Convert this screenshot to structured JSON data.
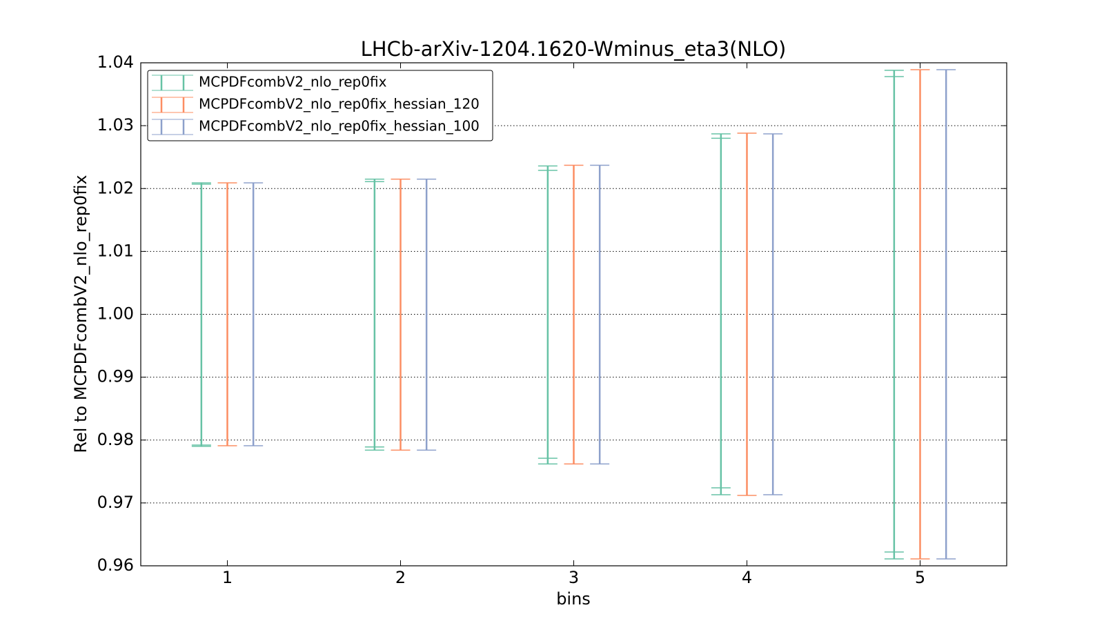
{
  "chart_data": {
    "type": "errorbar",
    "title": "LHCb-arXiv-1204.1620-Wminus_eta3(NLO)",
    "xlabel": "bins",
    "ylabel": "Rel to MCPDFcombV2_nlo_rep0fix",
    "x": [
      1,
      2,
      3,
      4,
      5
    ],
    "xlim": [
      0.5,
      5.5
    ],
    "xticks": [
      1,
      2,
      3,
      4,
      5
    ],
    "ylim": [
      0.96,
      1.04
    ],
    "yticks": [
      0.96,
      0.97,
      0.98,
      0.99,
      {
        "value": 1.0,
        "label": "1.00"
      },
      1.01,
      1.02,
      1.03,
      1.04
    ],
    "grid": true,
    "legend": "upper left",
    "series": [
      {
        "name": "MCPDFcombV2_nlo_rep0fix",
        "color": "#66c2a5",
        "lower": [
          0.979,
          0.9784,
          0.9762,
          0.9713,
          0.9611
        ],
        "upper": [
          1.0209,
          1.0215,
          1.0236,
          1.0287,
          1.0388
        ],
        "inner_lower": [
          0.9792,
          0.9789,
          0.9771,
          0.9724,
          0.9622
        ],
        "inner_upper": [
          1.0207,
          1.0211,
          1.0229,
          1.028,
          1.0378
        ]
      },
      {
        "name": "MCPDFcombV2_nlo_rep0fix_hessian_120",
        "color": "#fc8d62",
        "lower": [
          0.9791,
          0.9784,
          0.9762,
          0.9712,
          0.9611
        ],
        "upper": [
          1.0209,
          1.0215,
          1.0237,
          1.0288,
          1.0389
        ]
      },
      {
        "name": "MCPDFcombV2_nlo_rep0fix_hessian_100",
        "color": "#8da0cb",
        "lower": [
          0.9791,
          0.9784,
          0.9762,
          0.9713,
          0.9611
        ],
        "upper": [
          1.0209,
          1.0215,
          1.0237,
          1.0287,
          1.0389
        ]
      }
    ]
  }
}
